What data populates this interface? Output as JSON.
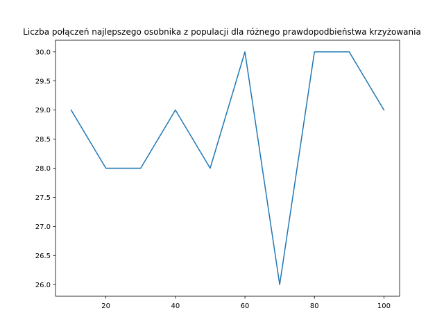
{
  "chart_data": {
    "type": "line",
    "title": "Liczba połączeń najlepszego osobnika z populacji dla różnego prawdopodbieństwa krzyżowania",
    "xlabel": "",
    "ylabel": "",
    "x": [
      10,
      20,
      30,
      40,
      50,
      60,
      70,
      80,
      90,
      100
    ],
    "series": [
      {
        "values": [
          29,
          28,
          28,
          29,
          28,
          30,
          26,
          30,
          30,
          29
        ],
        "color": "#1f77b4"
      }
    ],
    "xlim": [
      5.5,
      104.5
    ],
    "ylim": [
      25.8,
      30.2
    ],
    "xticks": [
      20,
      40,
      60,
      80,
      100
    ],
    "xtick_labels": [
      "20",
      "40",
      "60",
      "80",
      "100"
    ],
    "yticks": [
      26.0,
      26.5,
      27.0,
      27.5,
      28.0,
      28.5,
      29.0,
      29.5,
      30.0
    ],
    "ytick_labels": [
      "26.0",
      "26.5",
      "27.0",
      "27.5",
      "28.0",
      "28.5",
      "29.0",
      "29.5",
      "30.0"
    ],
    "grid": false,
    "legend": "none"
  }
}
